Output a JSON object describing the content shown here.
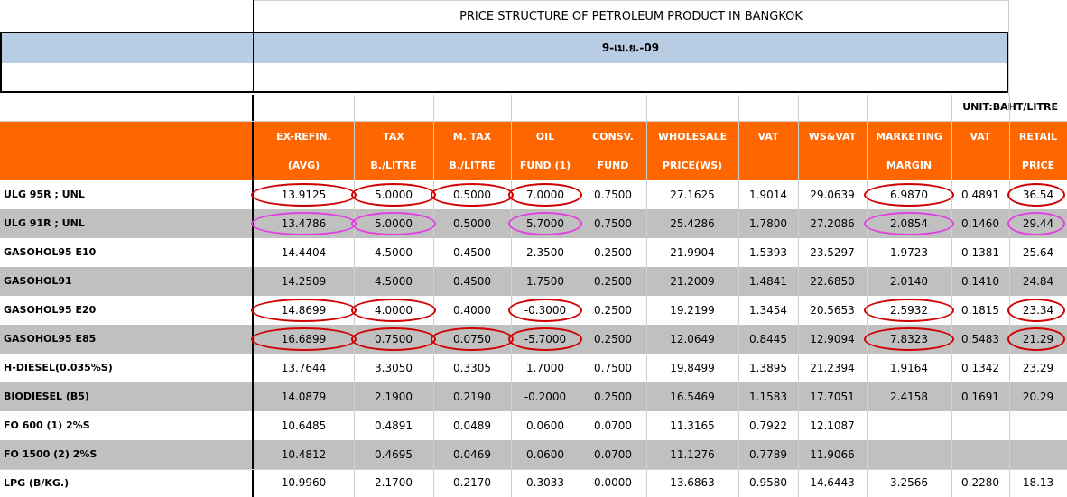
{
  "title": "PRICE STRUCTURE OF PETROLEUM PRODUCT IN BANGKOK",
  "date": "9-เม.ย.-09",
  "unit": "UNIT:BAHT/LITRE",
  "colors": {
    "header": "#ff6600",
    "band": "#b8cce4",
    "gray_row": "#c0c0c0",
    "circle_red": "#d00000",
    "circle_magenta": "#e040e0"
  },
  "columns": [
    {
      "line1": "EX-REFIN.",
      "line2": "(AVG)"
    },
    {
      "line1": "TAX",
      "line2": "B./LITRE"
    },
    {
      "line1": "M. TAX",
      "line2": "B./LITRE"
    },
    {
      "line1": "OIL",
      "line2": "FUND (1)"
    },
    {
      "line1": "CONSV.",
      "line2": "FUND"
    },
    {
      "line1": "WHOLESALE",
      "line2": "PRICE(WS)"
    },
    {
      "line1": "VAT",
      "line2": ""
    },
    {
      "line1": "WS&VAT",
      "line2": ""
    },
    {
      "line1": "MARKETING",
      "line2": "MARGIN"
    },
    {
      "line1": "VAT",
      "line2": ""
    },
    {
      "line1": "RETAIL",
      "line2": "PRICE"
    }
  ],
  "rows": [
    {
      "product": "ULG 95R ; UNL",
      "values": [
        "13.9125",
        "5.0000",
        "0.5000",
        "7.0000",
        "0.7500",
        "27.1625",
        "1.9014",
        "29.0639",
        "6.9870",
        "0.4891",
        "36.54"
      ]
    },
    {
      "product": "ULG 91R ; UNL",
      "values": [
        "13.4786",
        "5.0000",
        "0.5000",
        "5.7000",
        "0.7500",
        "25.4286",
        "1.7800",
        "27.2086",
        "2.0854",
        "0.1460",
        "29.44"
      ]
    },
    {
      "product": "GASOHOL95 E10",
      "values": [
        "14.4404",
        "4.5000",
        "0.4500",
        "2.3500",
        "0.2500",
        "21.9904",
        "1.5393",
        "23.5297",
        "1.9723",
        "0.1381",
        "25.64"
      ]
    },
    {
      "product": "GASOHOL91",
      "values": [
        "14.2509",
        "4.5000",
        "0.4500",
        "1.7500",
        "0.2500",
        "21.2009",
        "1.4841",
        "22.6850",
        "2.0140",
        "0.1410",
        "24.84"
      ]
    },
    {
      "product": "GASOHOL95 E20",
      "values": [
        "14.8699",
        "4.0000",
        "0.4000",
        "-0.3000",
        "0.2500",
        "19.2199",
        "1.3454",
        "20.5653",
        "2.5932",
        "0.1815",
        "23.34"
      ]
    },
    {
      "product": "GASOHOL95 E85",
      "values": [
        "16.6899",
        "0.7500",
        "0.0750",
        "-5.7000",
        "0.2500",
        "12.0649",
        "0.8445",
        "12.9094",
        "7.8323",
        "0.5483",
        "21.29"
      ]
    },
    {
      "product": "H-DIESEL(0.035%S)",
      "values": [
        "13.7644",
        "3.3050",
        "0.3305",
        "1.7000",
        "0.7500",
        "19.8499",
        "1.3895",
        "21.2394",
        "1.9164",
        "0.1342",
        "23.29"
      ]
    },
    {
      "product": "BIODIESEL (B5)",
      "values": [
        "14.0879",
        "2.1900",
        "0.2190",
        "-0.2000",
        "0.2500",
        "16.5469",
        "1.1583",
        "17.7051",
        "2.4158",
        "0.1691",
        "20.29"
      ]
    },
    {
      "product": "FO 600 (1) 2%S",
      "values": [
        "10.6485",
        "0.4891",
        "0.0489",
        "0.0600",
        "0.0700",
        "11.3165",
        "0.7922",
        "12.1087",
        "",
        "",
        ""
      ]
    },
    {
      "product": "FO 1500 (2) 2%S",
      "values": [
        "10.4812",
        "0.4695",
        "0.0469",
        "0.0600",
        "0.0700",
        "11.1276",
        "0.7789",
        "11.9066",
        "",
        "",
        ""
      ]
    },
    {
      "product": "LPG (B/KG.)",
      "values": [
        "10.9960",
        "2.1700",
        "0.2170",
        "0.3033",
        "0.0000",
        "13.6863",
        "0.9580",
        "14.6443",
        "3.2566",
        "0.2280",
        "18.13"
      ]
    }
  ]
}
